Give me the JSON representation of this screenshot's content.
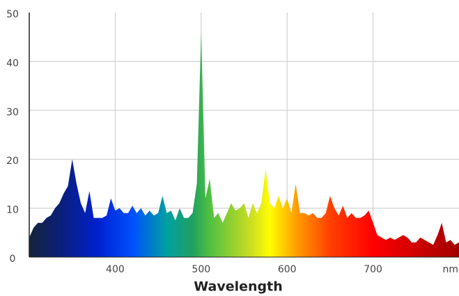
{
  "chart_data": {
    "type": "area",
    "xlabel": "Wavelength",
    "x": [
      300,
      305,
      310,
      315,
      320,
      325,
      330,
      335,
      340,
      345,
      350,
      355,
      360,
      365,
      370,
      375,
      380,
      385,
      390,
      395,
      400,
      405,
      410,
      415,
      420,
      425,
      430,
      435,
      440,
      445,
      450,
      455,
      460,
      465,
      470,
      475,
      480,
      485,
      490,
      495,
      500,
      505,
      510,
      515,
      520,
      525,
      530,
      535,
      540,
      545,
      550,
      555,
      560,
      565,
      570,
      575,
      580,
      585,
      590,
      595,
      600,
      605,
      610,
      615,
      620,
      625,
      630,
      635,
      640,
      645,
      650,
      655,
      660,
      665,
      670,
      675,
      680,
      685,
      690,
      695,
      700,
      705,
      710,
      715,
      720,
      725,
      730,
      735,
      740,
      745,
      750,
      755,
      760,
      765,
      770,
      775,
      780,
      785,
      790,
      795,
      800
    ],
    "values": [
      4,
      6,
      7,
      7,
      8,
      8.5,
      10,
      11,
      13,
      14.5,
      20,
      15,
      11,
      9,
      13.5,
      8,
      8,
      8,
      8.5,
      12,
      9.5,
      10,
      9,
      9,
      10.5,
      9,
      10,
      8.5,
      9.5,
      8.5,
      9,
      12.5,
      9,
      9.5,
      7.5,
      10,
      8,
      8,
      9,
      15,
      46,
      12,
      16,
      8,
      9,
      7,
      9,
      11,
      9.5,
      10,
      11,
      8,
      11,
      9,
      11,
      18,
      11,
      10,
      12.5,
      10,
      12,
      9,
      15,
      9,
      9,
      8.5,
      9,
      8,
      8,
      9,
      12.5,
      10,
      8.5,
      10.5,
      8,
      9,
      8,
      8,
      8.5,
      9.5,
      7,
      4.5,
      4,
      3.5,
      4,
      3.5,
      4,
      4.5,
      4,
      3,
      3,
      4,
      3.5,
      3,
      2.5,
      4.5,
      7,
      3,
      3.5,
      2.5,
      3
    ],
    "xlim": [
      300,
      800
    ],
    "xticks": [
      400,
      500,
      600,
      700,
      {
        "value": 800,
        "label": "nm"
      }
    ],
    "ylim": [
      0,
      50
    ],
    "yticks": [
      0,
      10,
      20,
      30,
      40,
      50
    ],
    "grid": true
  }
}
